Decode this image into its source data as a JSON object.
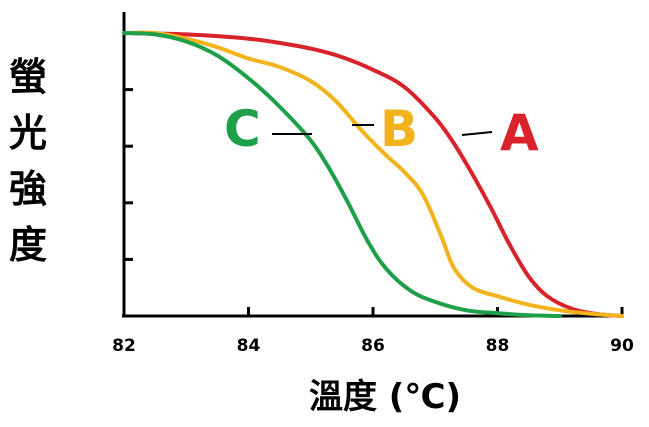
{
  "chart_data": {
    "type": "line",
    "title": "",
    "xlabel": "溫度 (℃)",
    "ylabel": "螢光強度",
    "xlim": [
      82,
      90
    ],
    "ylim": [
      0,
      1
    ],
    "x_ticks": [
      82,
      84,
      86,
      88,
      90
    ],
    "x_tick_labels": [
      "82",
      "84",
      "86",
      "88",
      "90"
    ],
    "y_tick_count": 5,
    "grid": false,
    "legend": "inline labels",
    "series": [
      {
        "name": "A",
        "color": "#d9232a",
        "x": [
          82,
          83,
          84,
          84.5,
          85,
          85.5,
          86,
          86.5,
          87,
          87.3,
          87.6,
          87.9,
          88.2,
          88.5,
          88.8,
          89.2,
          89.6,
          90
        ],
        "y": [
          1.0,
          0.995,
          0.98,
          0.965,
          0.945,
          0.915,
          0.87,
          0.81,
          0.7,
          0.61,
          0.5,
          0.38,
          0.25,
          0.14,
          0.07,
          0.025,
          0.007,
          0.0
        ]
      },
      {
        "name": "B",
        "color": "#f2b31c",
        "x": [
          82,
          82.5,
          83,
          83.5,
          84,
          84.5,
          85,
          85.4,
          85.8,
          86.2,
          86.5,
          86.8,
          87.1,
          87.3,
          87.6,
          88,
          88.5,
          89,
          89.5,
          90
        ],
        "y": [
          1.0,
          1.0,
          0.98,
          0.95,
          0.91,
          0.88,
          0.83,
          0.76,
          0.66,
          0.57,
          0.51,
          0.43,
          0.28,
          0.17,
          0.1,
          0.07,
          0.04,
          0.02,
          0.008,
          0.0
        ]
      },
      {
        "name": "C",
        "color": "#1e9f4a",
        "x": [
          82,
          82.5,
          83,
          83.5,
          84,
          84.5,
          85,
          85.3,
          85.6,
          85.9,
          86.2,
          86.6,
          87,
          87.5,
          88,
          88.5,
          89
        ],
        "y": [
          1.0,
          0.995,
          0.97,
          0.92,
          0.84,
          0.74,
          0.62,
          0.52,
          0.4,
          0.27,
          0.17,
          0.09,
          0.05,
          0.02,
          0.01,
          0.003,
          0.0
        ]
      }
    ]
  }
}
